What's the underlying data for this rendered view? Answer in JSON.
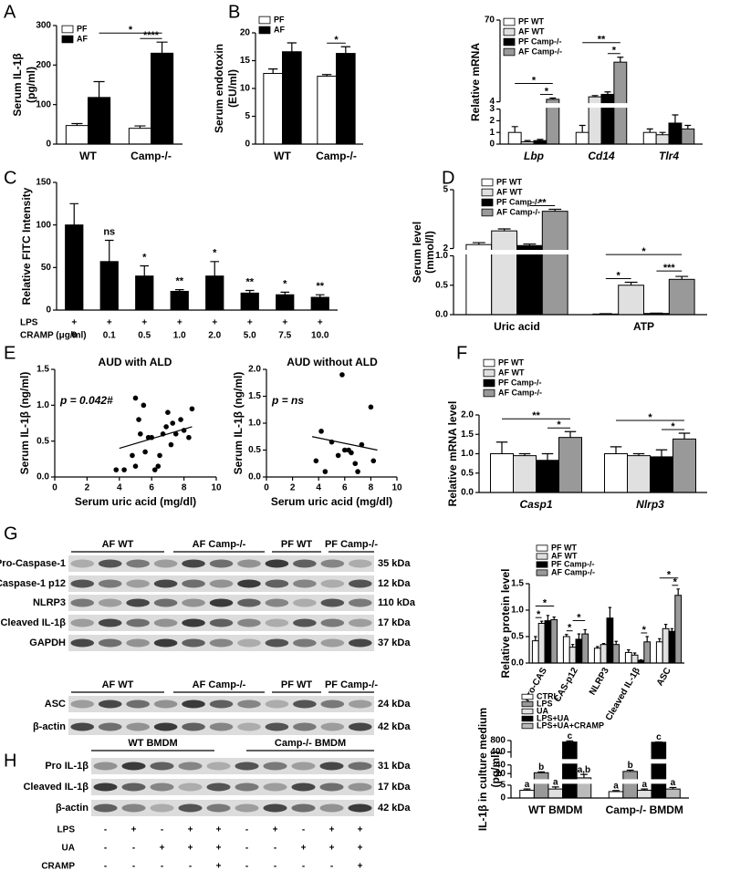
{
  "panel_labels": [
    "A",
    "B",
    "C",
    "D",
    "E",
    "F",
    "G",
    "H"
  ],
  "chart_data": [
    {
      "type": "bar",
      "ylabel": [
        "Serum IL-1β",
        "(pg/ml)"
      ],
      "categories": [
        "WT",
        "Camp-/-"
      ],
      "series": [
        {
          "name": "PF",
          "color": "#ffffff",
          "values": [
            47,
            40
          ],
          "errors": [
            5,
            6
          ]
        },
        {
          "name": "AF",
          "color": "#000000",
          "values": [
            118,
            230
          ],
          "errors": [
            40,
            28
          ]
        }
      ],
      "ylim": [
        0,
        300
      ],
      "yticks": [
        0,
        100,
        200,
        300
      ],
      "legend": "upper left",
      "annotations": [
        "*",
        "****"
      ]
    },
    {
      "type": "bar",
      "ylabel": [
        "Serum endotoxin",
        "(EU/ml)"
      ],
      "categories": [
        "WT",
        "Camp-/-"
      ],
      "series": [
        {
          "name": "PF",
          "color": "#ffffff",
          "values": [
            12.7,
            12.2
          ],
          "errors": [
            0.8,
            0.3
          ]
        },
        {
          "name": "AF",
          "color": "#000000",
          "values": [
            16.6,
            16.3
          ],
          "errors": [
            1.6,
            1.2
          ]
        }
      ],
      "ylim": [
        0,
        20
      ],
      "yticks": [
        0,
        5,
        10,
        15,
        20
      ],
      "legend": "upper left",
      "annotations": [
        "*"
      ]
    },
    {
      "type": "bar",
      "ylabel": [
        "Relative mRNA"
      ],
      "categories": [
        "Lbp",
        "Cd14",
        "Tlr4"
      ],
      "series": [
        {
          "name": "PF WT",
          "color": "#ffffff",
          "values": [
            1.0,
            1.0,
            1.0
          ],
          "errors": [
            0.5,
            0.6,
            0.3
          ]
        },
        {
          "name": "AF WT",
          "color": "#e0e0e0",
          "values": [
            0.2,
            8,
            0.8
          ],
          "errors": [
            0.1,
            1,
            0.2
          ]
        },
        {
          "name": "PF Camp-/-",
          "color": "#000000",
          "values": [
            0.3,
            10,
            1.8
          ],
          "errors": [
            0.1,
            2,
            0.7
          ]
        },
        {
          "name": "AF Camp-/-",
          "color": "#999999",
          "values": [
            6,
            36,
            1.3
          ],
          "errors": [
            1,
            4,
            0.3
          ]
        }
      ],
      "ylim": [
        0,
        70
      ],
      "ybreaks": [
        [
          3,
          4
        ]
      ],
      "yticks": [
        0,
        1,
        2,
        3,
        4,
        70
      ],
      "legend": "upper left",
      "annotations": [
        "*",
        "*",
        "**",
        "*"
      ]
    },
    {
      "type": "bar",
      "ylabel": [
        "Relative FITC Intensity"
      ],
      "categories": [
        "0",
        "0.1",
        "0.5",
        "1.0",
        "2.0",
        "5.0",
        "7.5",
        "10.0"
      ],
      "category_label": "CRAMP (μg/ml)",
      "treatment": {
        "label": "LPS",
        "values": [
          "+",
          "+",
          "+",
          "+",
          "+",
          "+",
          "+",
          "+"
        ]
      },
      "series": [
        {
          "color": "#000000",
          "values": [
            100,
            57,
            40,
            22,
            40,
            20,
            18,
            15
          ],
          "errors": [
            25,
            25,
            12,
            2,
            17,
            3,
            3,
            3
          ]
        }
      ],
      "ylim": [
        0,
        150
      ],
      "yticks": [
        0,
        50,
        100,
        150
      ],
      "annotations": [
        "ns",
        "*",
        "**",
        "*",
        "**",
        "*",
        "**"
      ]
    },
    {
      "type": "bar",
      "ylabel": [
        "Serum level",
        "(mmol/l)"
      ],
      "categories": [
        "Uric acid",
        "ATP"
      ],
      "series": [
        {
          "name": "PF WT",
          "color": "#ffffff",
          "values": [
            2.2,
            0.01
          ],
          "errors": [
            0.1,
            0.005
          ]
        },
        {
          "name": "AF WT",
          "color": "#e0e0e0",
          "values": [
            2.9,
            0.5
          ],
          "errors": [
            0.1,
            0.05
          ]
        },
        {
          "name": "PF Camp-/-",
          "color": "#000000",
          "values": [
            2.15,
            0.02
          ],
          "errors": [
            0.08,
            0.005
          ]
        },
        {
          "name": "AF Camp-/-",
          "color": "#999999",
          "values": [
            3.9,
            0.6
          ],
          "errors": [
            0.1,
            0.05
          ]
        }
      ],
      "ylim": [
        0,
        5
      ],
      "ybreaks": [
        [
          1,
          2
        ]
      ],
      "yticks": [
        {
          "value": 0,
          "label": "0.0"
        },
        {
          "value": 0.5,
          "label": "0.5"
        },
        {
          "value": 1,
          "label": "1.0"
        },
        2,
        5
      ],
      "legend": "upper left",
      "annotations": [
        "**",
        "*",
        "*",
        "***"
      ]
    },
    {
      "type": "scatter",
      "title": "AUD with ALD",
      "annotation": "p = 0.042#",
      "xlabel": "Serum uric acid (mg/dl)",
      "ylabel": [
        "Serum IL-1β (ng/ml)"
      ],
      "x": [
        3.8,
        4.3,
        4.8,
        5.0,
        5.2,
        5.0,
        5.3,
        5.6,
        5.8,
        6.0,
        6.2,
        6.4,
        6.5,
        6.7,
        6.9,
        7.0,
        7.2,
        7.3,
        7.5,
        7.8,
        8.0,
        8.3,
        8.5,
        5.5
      ],
      "y": [
        0.1,
        0.1,
        0.3,
        1.1,
        0.8,
        0.15,
        0.6,
        0.35,
        0.55,
        0.55,
        0.1,
        0.15,
        0.3,
        0.6,
        0.7,
        0.9,
        0.45,
        0.75,
        0.6,
        0.8,
        0.65,
        0.55,
        0.95,
        1.0
      ],
      "trend": {
        "x": [
          4,
          8.5
        ],
        "y": [
          0.4,
          0.7
        ]
      },
      "xlim": [
        0,
        10
      ],
      "xticks": [
        0,
        2,
        4,
        6,
        8,
        10
      ],
      "ylim": [
        0,
        1.5
      ],
      "yticks": [
        {
          "value": 0,
          "label": "0.0"
        },
        {
          "value": 0.5,
          "label": "0.5"
        },
        {
          "value": 1,
          "label": "1.0"
        },
        {
          "value": 1.5,
          "label": "1.5"
        }
      ]
    },
    {
      "type": "scatter",
      "title": "AUD without ALD",
      "annotation": "p = ns",
      "xlabel": "Serum uric acid (mg/dl)",
      "ylabel": [
        "Serum IL-1β (ng/ml)"
      ],
      "x": [
        3.8,
        4.2,
        4.5,
        5.0,
        5.5,
        5.8,
        6.0,
        6.3,
        6.5,
        6.8,
        7.0,
        7.3,
        8.0,
        8.2
      ],
      "y": [
        0.3,
        0.85,
        0.1,
        0.65,
        0.4,
        1.9,
        0.5,
        0.5,
        0.45,
        0.25,
        0.1,
        0.6,
        1.3,
        0.3
      ],
      "trend": {
        "x": [
          3.5,
          8.5
        ],
        "y": [
          0.75,
          0.5
        ]
      },
      "xlim": [
        0,
        10
      ],
      "xticks": [
        0,
        2,
        4,
        6,
        8,
        10
      ],
      "ylim": [
        0,
        2
      ],
      "yticks": [
        {
          "value": 0,
          "label": "0.0"
        },
        {
          "value": 0.5,
          "label": "0.5"
        },
        {
          "value": 1,
          "label": "1.0"
        },
        {
          "value": 1.5,
          "label": "1.5"
        },
        {
          "value": 2,
          "label": "2.0"
        }
      ]
    },
    {
      "type": "bar",
      "ylabel": [
        "Relative mRNA level"
      ],
      "categories": [
        "Casp1",
        "Nlrp3"
      ],
      "series": [
        {
          "name": "PF WT",
          "color": "#ffffff",
          "values": [
            1.0,
            1.0
          ],
          "errors": [
            0.3,
            0.18
          ]
        },
        {
          "name": "AF WT",
          "color": "#e0e0e0",
          "values": [
            0.95,
            0.95
          ],
          "errors": [
            0.05,
            0.05
          ]
        },
        {
          "name": "PF Camp-/-",
          "color": "#000000",
          "values": [
            0.83,
            0.92
          ],
          "errors": [
            0.17,
            0.18
          ]
        },
        {
          "name": "AF Camp-/-",
          "color": "#999999",
          "values": [
            1.42,
            1.38
          ],
          "errors": [
            0.15,
            0.15
          ]
        }
      ],
      "ylim": [
        0,
        2
      ],
      "yticks": [
        {
          "value": 0,
          "label": "0.0"
        },
        {
          "value": 0.5,
          "label": "0.5"
        },
        {
          "value": 1,
          "label": "1.0"
        },
        {
          "value": 1.5,
          "label": "1.5"
        },
        {
          "value": 2,
          "label": "2.0"
        }
      ],
      "legend": "upper left",
      "annotations": [
        "*",
        "**",
        "*",
        "*"
      ]
    },
    {
      "type": "bar",
      "ylabel": [
        "Relative protein level"
      ],
      "categories": [
        "Pro-CAS",
        "CAS-p12",
        "NLRP3",
        "Cleaved IL-1β",
        "ASC"
      ],
      "series": [
        {
          "name": "PF WT",
          "color": "#ffffff",
          "values": [
            0.42,
            0.5,
            0.28,
            0.2,
            0.4
          ],
          "errors": [
            0.08,
            0.04,
            0.03,
            0.05,
            0.06
          ]
        },
        {
          "name": "AF WT",
          "color": "#e0e0e0",
          "values": [
            0.75,
            0.3,
            0.35,
            0.15,
            0.65
          ],
          "errors": [
            0.04,
            0.05,
            0.02,
            0.04,
            0.08
          ]
        },
        {
          "name": "PF Camp-/-",
          "color": "#000000",
          "values": [
            0.8,
            0.45,
            0.85,
            0.05,
            0.6
          ],
          "errors": [
            0.1,
            0.1,
            0.2,
            0.01,
            0.05
          ]
        },
        {
          "name": "AF Camp-/-",
          "color": "#999999",
          "values": [
            0.82,
            0.55,
            0.35,
            0.4,
            1.28
          ],
          "errors": [
            0.05,
            0.08,
            0.06,
            0.1,
            0.12
          ]
        }
      ],
      "ylim": [
        0,
        1.5
      ],
      "yticks": [
        {
          "value": 0,
          "label": "0.0"
        },
        {
          "value": 0.5,
          "label": "0.5"
        },
        {
          "value": 1,
          "label": "1.0"
        },
        {
          "value": 1.5,
          "label": "1.5"
        }
      ],
      "legend": "upper left",
      "annotations": [
        "*",
        "*",
        "*",
        "*",
        "*",
        "*",
        "*"
      ]
    },
    {
      "type": "bar",
      "ylabel": [
        "IL-1β in culture medium",
        "(pg/ml)"
      ],
      "categories": [
        "WT BMDM",
        "Camp-/- BMDM"
      ],
      "series": [
        {
          "name": "CTRL",
          "color": "#ffffff",
          "values": [
            3,
            2.5
          ],
          "errors": [
            0.5,
            0.4
          ]
        },
        {
          "name": "LPS",
          "color": "#999999",
          "values": [
            22,
            25
          ],
          "errors": [
            2,
            3
          ]
        },
        {
          "name": "UA",
          "color": "#e0e0e0",
          "values": [
            3.5,
            3
          ],
          "errors": [
            0.8,
            0.5
          ]
        },
        {
          "name": "LPS+UA",
          "color": "#000000",
          "values": [
            750,
            740
          ],
          "errors": [
            40,
            10
          ]
        },
        {
          "name": "LPS+UA+CRAMP",
          "color": "#bbbbbb",
          "values": [
            10,
            3.5
          ],
          "errors": [
            8,
            0.6
          ]
        }
      ],
      "letters": [
        [
          "a",
          "b",
          "a",
          "c",
          "a,b"
        ],
        [
          "a",
          "b",
          "a",
          "c",
          "a"
        ]
      ],
      "ylim": [
        0,
        800
      ],
      "ybreaks": [
        [
          5,
          10
        ],
        [
          40,
          200
        ]
      ],
      "yticks": [
        0,
        5,
        20,
        40,
        400,
        800
      ],
      "legend": "upper left"
    }
  ],
  "blots": [
    {
      "groups": [
        "AF WT",
        "AF Camp-/-",
        "PF WT",
        "PF Camp-/-"
      ],
      "rows": [
        {
          "label": "Pro-Caspase-1",
          "size": "35 kDa"
        },
        {
          "label": "Caspase-1 p12",
          "size": "12 kDa"
        },
        {
          "label": "NLRP3",
          "size": "110 kDa"
        },
        {
          "label": "Cleaved IL-1β",
          "size": "17 kDa"
        },
        {
          "label": "GAPDH",
          "size": "37 kDa"
        }
      ]
    },
    {
      "groups": [
        "AF WT",
        "AF Camp-/-",
        "PF WT",
        "PF Camp-/-"
      ],
      "rows": [
        {
          "label": "ASC",
          "size": "24 kDa"
        },
        {
          "label": "β-actin",
          "size": "42 kDa"
        }
      ]
    },
    {
      "groups": [
        "WT BMDM",
        "Camp-/- BMDM"
      ],
      "rows": [
        {
          "label": "Pro IL-1β",
          "size": "31 kDa"
        },
        {
          "label": "Cleaved IL-1β",
          "size": "17 kDa"
        },
        {
          "label": "β-actin",
          "size": "42 kDa"
        }
      ],
      "treatments": [
        {
          "label": "LPS",
          "values": [
            "-",
            "+",
            "-",
            "+",
            "+",
            "-",
            "+",
            "-",
            "+",
            "+"
          ]
        },
        {
          "label": "UA",
          "values": [
            "-",
            "-",
            "+",
            "+",
            "+",
            "-",
            "-",
            "+",
            "+",
            "+"
          ]
        },
        {
          "label": "CRAMP",
          "values": [
            "-",
            "-",
            "-",
            "-",
            "+",
            "-",
            "-",
            "-",
            "-",
            "+"
          ]
        }
      ]
    }
  ]
}
